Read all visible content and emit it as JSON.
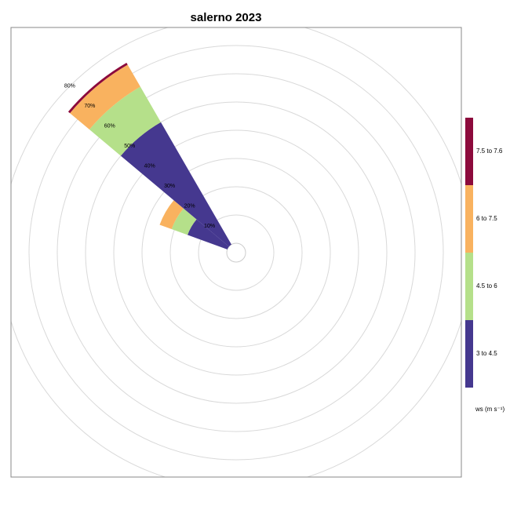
{
  "chart_data": {
    "type": "windrose",
    "title": "salerno 2023",
    "legend_title": "ws (m s⁻¹)",
    "directions": [
      300,
      320
    ],
    "sector_width": 20,
    "series": [
      {
        "name": "3 to 4.5",
        "color": "#45388f",
        "values": [
          15,
          50
        ]
      },
      {
        "name": "4.5 to 6",
        "color": "#b5e08a",
        "values": [
          6,
          14.5
        ]
      },
      {
        "name": "6 to 7.5",
        "color": "#f9b25f",
        "values": [
          4.5,
          9
        ]
      },
      {
        "name": "7.5 to 7.6",
        "color": "#8c0a3c",
        "values": [
          0,
          0.8
        ]
      }
    ],
    "rlim": [
      0,
      80
    ],
    "rticks": [
      {
        "value": 10,
        "label": "10%"
      },
      {
        "value": 20,
        "label": "20%"
      },
      {
        "value": 30,
        "label": "30%"
      },
      {
        "value": 40,
        "label": "40%"
      },
      {
        "value": 50,
        "label": "50%"
      },
      {
        "value": 60,
        "label": "60%"
      },
      {
        "value": 70,
        "label": "70%"
      },
      {
        "value": 80,
        "label": "80%"
      }
    ],
    "grid": true
  }
}
